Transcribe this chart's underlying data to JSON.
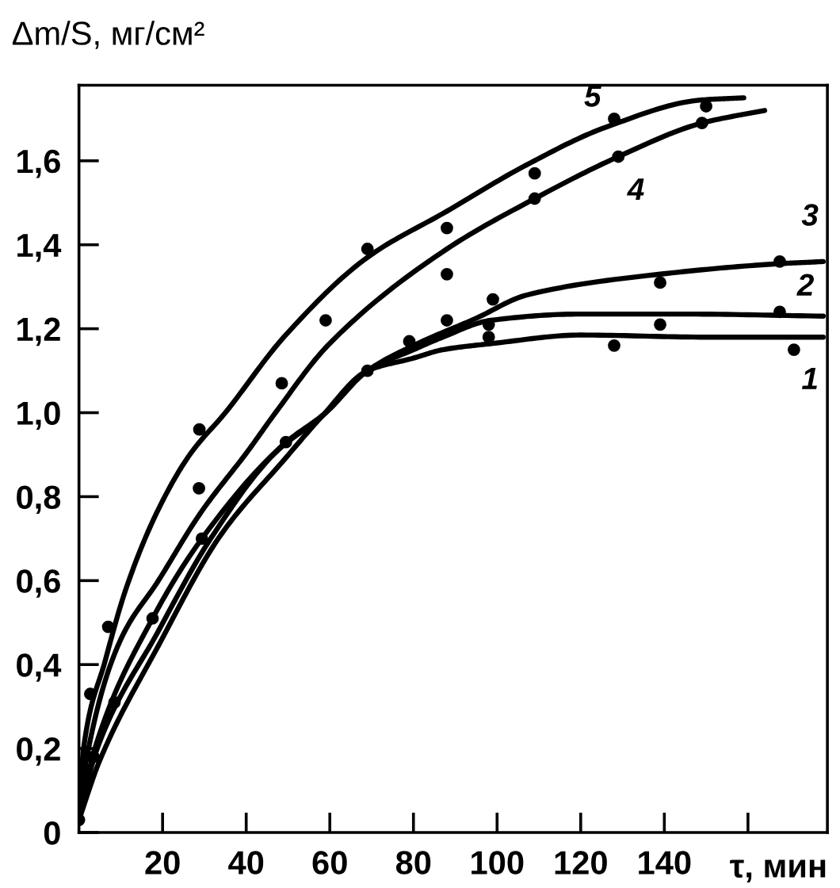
{
  "chart_data": {
    "type": "line",
    "xlabel": "τ, мин",
    "ylabel": "Δm/S, мг/см²",
    "xlim": [
      0,
      179
    ],
    "ylim": [
      0,
      1.78
    ],
    "xticks": [
      20,
      40,
      60,
      80,
      100,
      120,
      140,
      {
        "value": 160,
        "label": null
      }
    ],
    "yticks": [
      0,
      {
        "value": 0.2,
        "label": "0,2"
      },
      {
        "value": 0.4,
        "label": "0,4"
      },
      {
        "value": 0.6,
        "label": "0,6"
      },
      {
        "value": 0.8,
        "label": "0,8"
      },
      {
        "value": 1.0,
        "label": "1,0"
      },
      {
        "value": 1.2,
        "label": "1,2"
      },
      {
        "value": 1.4,
        "label": "1,4"
      },
      {
        "value": 1.6,
        "label": "1,6"
      }
    ],
    "grid": false,
    "legend": false,
    "marker": "none",
    "line_style": "solid",
    "series": [
      {
        "name": "1",
        "color": "#000000",
        "x": [
          0,
          4.9,
          19,
          34,
          49,
          58,
          69,
          80,
          87,
          99,
          120,
          150,
          178
        ],
        "values": [
          0.03,
          0.17,
          0.445,
          0.71,
          0.887,
          0.99,
          1.1,
          1.13,
          1.15,
          1.165,
          1.185,
          1.18,
          1.18
        ]
      },
      {
        "name": "2",
        "color": "#000000",
        "x": [
          0,
          4,
          19,
          31.5,
          47,
          58.5,
          69,
          80,
          87,
          98.5,
          120,
          144,
          178
        ],
        "values": [
          0.03,
          0.19,
          0.48,
          0.7,
          0.905,
          0.995,
          1.1,
          1.15,
          1.18,
          1.22,
          1.235,
          1.235,
          1.23
        ]
      },
      {
        "name": "3",
        "color": "#000000",
        "x": [
          0,
          3.8,
          17.6,
          29.4,
          49,
          59,
          69,
          80,
          95,
          107,
          139,
          167.6,
          178
        ],
        "values": [
          0.03,
          0.2,
          0.51,
          0.7,
          0.925,
          1.0,
          1.1,
          1.16,
          1.225,
          1.28,
          1.33,
          1.355,
          1.36
        ]
      },
      {
        "name": "4",
        "color": "#000000",
        "x": [
          0,
          1.9,
          10,
          19,
          29,
          40.5,
          47,
          59.5,
          88,
          109,
          129,
          149,
          164
        ],
        "values": [
          0.03,
          0.18,
          0.46,
          0.6,
          0.76,
          0.91,
          1.0,
          1.16,
          1.39,
          1.51,
          1.61,
          1.69,
          1.72
        ]
      },
      {
        "name": "5",
        "color": "#000000",
        "x": [
          0,
          1.1,
          6.3,
          11.4,
          19,
          26.5,
          35,
          49,
          69,
          88,
          107,
          126,
          149,
          159
        ],
        "values": [
          0.03,
          0.2,
          0.41,
          0.585,
          0.77,
          0.9,
          1.0,
          1.18,
          1.37,
          1.48,
          1.59,
          1.68,
          1.745,
          1.75
        ]
      },
      {
        "type": "scatter",
        "color": "#000000",
        "marker": "circle",
        "x": [
          0,
          2.7,
          3.5,
          7,
          8.5,
          17.6,
          28.7,
          28.8,
          29.4,
          48.5,
          49.5,
          59,
          69,
          69,
          79,
          88,
          88,
          88,
          98,
          98,
          99,
          109,
          109,
          128,
          128,
          129,
          139,
          139,
          149,
          150,
          167.6,
          167.6,
          171
        ],
        "values": [
          0.03,
          0.33,
          0.18,
          0.49,
          0.31,
          0.51,
          0.82,
          0.96,
          0.7,
          1.07,
          0.93,
          1.22,
          1.39,
          1.1,
          1.17,
          1.44,
          1.33,
          1.22,
          1.21,
          1.18,
          1.27,
          1.57,
          1.51,
          1.7,
          1.16,
          1.61,
          1.31,
          1.21,
          1.69,
          1.73,
          1.36,
          1.24,
          1.15
        ]
      }
    ]
  }
}
